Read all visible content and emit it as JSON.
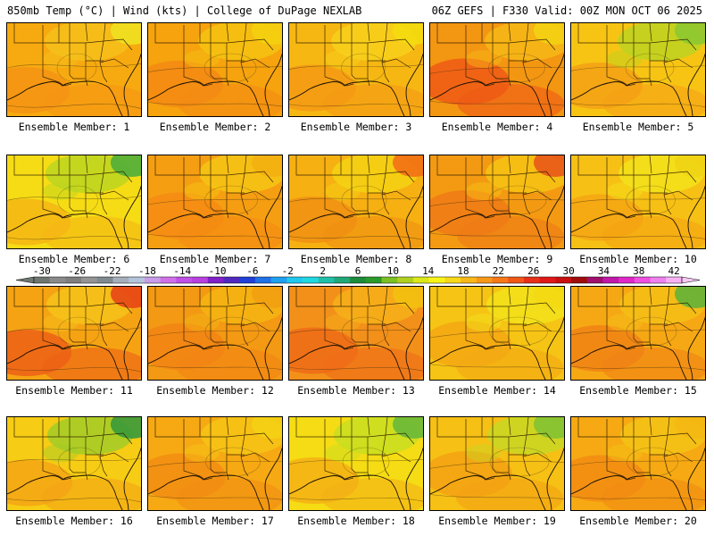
{
  "header": {
    "left": "850mb Temp (°C) | Wind (kts) | College of DuPage NEXLAB",
    "right": "06Z GEFS | F330 Valid: 00Z MON OCT 06 2025"
  },
  "caption_prefix": "Ensemble Member: ",
  "members": [
    {
      "label": "Ensemble Member: 1",
      "palette": [
        "#f7aa10",
        "#f59414",
        "#f5c21c"
      ],
      "accent": "#f0e020"
    },
    {
      "label": "Ensemble Member: 2",
      "palette": [
        "#f6a30e",
        "#f38a13",
        "#f5c412"
      ],
      "accent": "#f5d010"
    },
    {
      "label": "Ensemble Member: 3",
      "palette": [
        "#f6b712",
        "#f59a14",
        "#f7d21c"
      ],
      "accent": "#f4dc10"
    },
    {
      "label": "Ensemble Member: 4",
      "palette": [
        "#f39612",
        "#ee5a16",
        "#f6ba16"
      ],
      "accent": "#f4d012"
    },
    {
      "label": "Ensemble Member: 5",
      "palette": [
        "#f7c414",
        "#f5a114",
        "#b8d420"
      ],
      "accent": "#8cc830"
    },
    {
      "label": "Ensemble Member: 6",
      "palette": [
        "#f6dc14",
        "#f5b614",
        "#b9d420"
      ],
      "accent": "#4fae3a"
    },
    {
      "label": "Ensemble Member: 7",
      "palette": [
        "#f59e12",
        "#f58b13",
        "#f6c714"
      ],
      "accent": "#f4b012"
    },
    {
      "label": "Ensemble Member: 8",
      "palette": [
        "#f6b012",
        "#f09013",
        "#f5d414"
      ],
      "accent": "#f27015"
    },
    {
      "label": "Ensemble Member: 9",
      "palette": [
        "#f39a12",
        "#ee7a16",
        "#f6c514"
      ],
      "accent": "#e85818"
    },
    {
      "label": "Ensemble Member: 10",
      "palette": [
        "#f7c015",
        "#f5a413",
        "#f2e41a"
      ],
      "accent": "#f0d414"
    },
    {
      "label": "Ensemble Member: 11",
      "palette": [
        "#f5a313",
        "#ec6016",
        "#f6c41a"
      ],
      "accent": "#e84616"
    },
    {
      "label": "Ensemble Member: 12",
      "palette": [
        "#f39913",
        "#f18414",
        "#f5b513"
      ],
      "accent": "#f2a012"
    },
    {
      "label": "Ensemble Member: 13",
      "palette": [
        "#f2901a",
        "#ef6c17",
        "#f6b118"
      ],
      "accent": "#f4c010"
    },
    {
      "label": "Ensemble Member: 14",
      "palette": [
        "#f6c414",
        "#f4a813",
        "#f2e51a"
      ],
      "accent": "#f3d912"
    },
    {
      "label": "Ensemble Member: 15",
      "palette": [
        "#f6a814",
        "#f08214",
        "#f5c116"
      ],
      "accent": "#63b338"
    },
    {
      "label": "Ensemble Member: 16",
      "palette": [
        "#f6cc14",
        "#f4a414",
        "#9dcc28"
      ],
      "accent": "#3a9a3a"
    },
    {
      "label": "Ensemble Member: 17",
      "palette": [
        "#f6a913",
        "#f28d13",
        "#f6c516"
      ],
      "accent": "#f4d014"
    },
    {
      "label": "Ensemble Member: 18",
      "palette": [
        "#f5dc14",
        "#f4b014",
        "#c6de20"
      ],
      "accent": "#68b838"
    },
    {
      "label": "Ensemble Member: 19",
      "palette": [
        "#f6c014",
        "#f3a213",
        "#c5d824"
      ],
      "accent": "#82c232"
    },
    {
      "label": "Ensemble Member: 20",
      "palette": [
        "#f6a913",
        "#f28c13",
        "#f5c516"
      ],
      "accent": "#f4b812"
    }
  ],
  "colorbar": {
    "ticks": [
      "-30",
      "-26",
      "-22",
      "-18",
      "-14",
      "-10",
      "-6",
      "-2",
      "2",
      "6",
      "10",
      "14",
      "18",
      "22",
      "26",
      "30",
      "34",
      "38",
      "42"
    ],
    "colors": [
      "#6f766f",
      "#8a8a8a",
      "#7f7f7f",
      "#949494",
      "#808a90",
      "#a5aebb",
      "#b3c4dc",
      "#c89ce8",
      "#d070e8",
      "#c050e8",
      "#b840e0",
      "#8020c8",
      "#5028c0",
      "#2040d8",
      "#2070e8",
      "#20a0f0",
      "#20c8f0",
      "#20d8e0",
      "#20c0a8",
      "#20a878",
      "#1c8c3c",
      "#2a9a2a",
      "#7cc024",
      "#b0d020",
      "#dce818",
      "#f8f418",
      "#f8d818",
      "#f8b818",
      "#f89818",
      "#f87818",
      "#f05818",
      "#e83018",
      "#e01818",
      "#c81010",
      "#a00c0c",
      "#a0106c",
      "#c018a8",
      "#e028c8",
      "#f050e0",
      "#f080f0",
      "#f8b0f4"
    ]
  }
}
